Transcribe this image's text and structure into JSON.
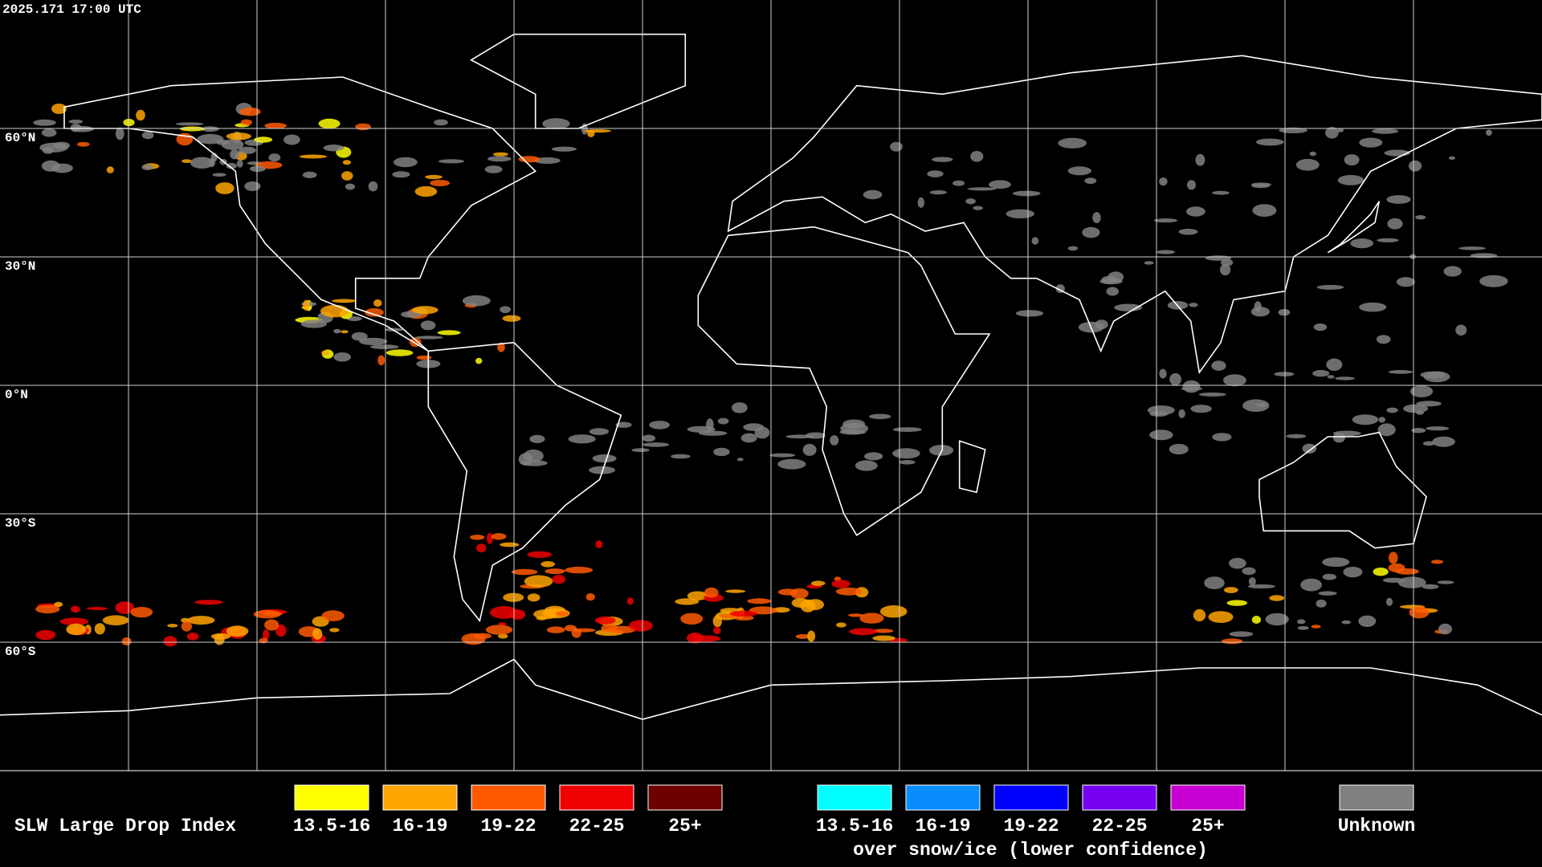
{
  "header": {
    "timestamp": "2025.171 17:00 UTC"
  },
  "map": {
    "latitude_labels": [
      "60°N",
      "30°N",
      "0°N",
      "30°S",
      "60°S"
    ]
  },
  "legend": {
    "title": "SLW Large Drop Index",
    "rain_items": [
      {
        "label": "13.5-16",
        "color": "#ffff00"
      },
      {
        "label": "16-19",
        "color": "#ffa500"
      },
      {
        "label": "19-22",
        "color": "#ff5a00"
      },
      {
        "label": "22-25",
        "color": "#f00000"
      },
      {
        "label": "25+",
        "color": "#6e0000"
      }
    ],
    "snow_items": [
      {
        "label": "13.5-16",
        "color": "#00ffff"
      },
      {
        "label": "16-19",
        "color": "#0a8cff"
      },
      {
        "label": "19-22",
        "color": "#0000ff"
      },
      {
        "label": "22-25",
        "color": "#7800f0"
      },
      {
        "label": "25+",
        "color": "#c800d2"
      }
    ],
    "snow_caption": "over snow/ice (lower confidence)",
    "unknown": {
      "label": "Unknown",
      "color": "#808080"
    }
  }
}
